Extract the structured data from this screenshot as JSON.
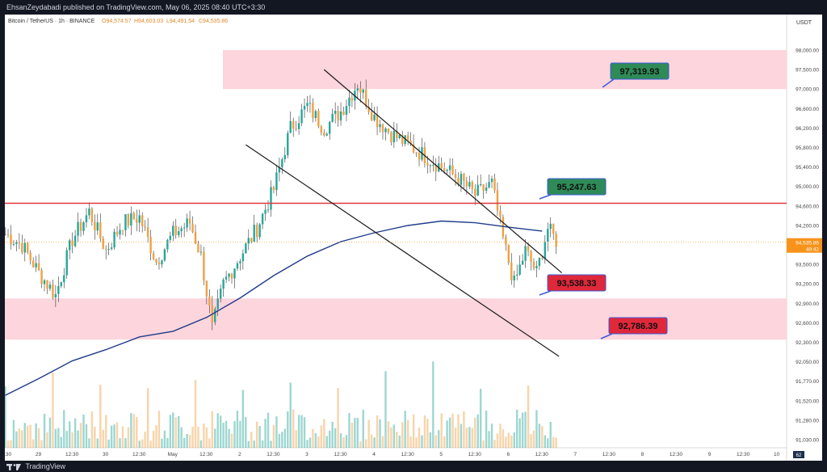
{
  "header": {
    "published_by": "EhsanZeydabadi published on TradingView.com, May 06, 2025 08:40 UTC+3:30"
  },
  "footer": {
    "brand": "TradingView"
  },
  "symbol_line": {
    "symbol": "Bitcoin / TetherUS · 1h · BINANCE",
    "open": "O94,574.57",
    "high": "H94,603.03",
    "low": "L94,491.54",
    "close": "C94,535.86"
  },
  "colors": {
    "up": "#26a69a",
    "down": "#f0a042",
    "zone": "#fdd5dc",
    "resistance_line": "#e0383e",
    "moving_average": "#1f3c8a",
    "channel": "#1a1a1a",
    "label_green": "#2e8b57",
    "label_red": "#e0283b",
    "last_price_badge": "#f7931a"
  },
  "chart_data": {
    "type": "candlestick",
    "currency": "USDT",
    "price_axis_ticks": [
      "98,000.00",
      "97,500.00",
      "97,000.00",
      "96,600.00",
      "96,200.00",
      "95,800.00",
      "95,400.00",
      "95,000.00",
      "94,600.00",
      "94,200.00",
      "93,800.00",
      "93,500.00",
      "93,200.00",
      "92,900.00",
      "92,600.00",
      "92,300.00",
      "92,050.00",
      "91,770.00",
      "91,520.00",
      "91,280.00",
      "91,030.00"
    ],
    "time_axis_ticks": [
      "12:30",
      "29",
      "12:30",
      "30",
      "12:30",
      "May",
      "12:30",
      "2",
      "12:30",
      "3",
      "12:30",
      "4",
      "12:30",
      "5",
      "12:30",
      "6",
      "12:30",
      "7",
      "12:30",
      "8",
      "12:30",
      "9",
      "12:30",
      "10"
    ],
    "last_price": "94,535.86",
    "countdown": "49:42",
    "bottom_right_badge": "62",
    "zones": [
      {
        "name": "upper supply zone",
        "from": 97300,
        "to": 98000
      },
      {
        "name": "lower demand zone",
        "from": 92800,
        "to": 93540
      }
    ],
    "resistance_line": 95250,
    "price_labels": [
      {
        "text": "97,319.93",
        "kind": "green"
      },
      {
        "text": "95,247.63",
        "kind": "green"
      },
      {
        "text": "93,538.33",
        "kind": "red"
      },
      {
        "text": "92,786.39",
        "kind": "red"
      }
    ],
    "channel_upper": {
      "from": {
        "time": "May 3 06:00",
        "price": 97650
      },
      "to": {
        "time": "May 6 19:00",
        "price": 94000
      }
    },
    "channel_lower": {
      "from": {
        "time": "May 2 02:00",
        "price": 96300
      },
      "to": {
        "time": "May 6 18:00",
        "price": 92500
      }
    },
    "moving_average": [
      {
        "time": "Apr 28 12:00",
        "price": 91800
      },
      {
        "time": "Apr 29 00:00",
        "price": 92100
      },
      {
        "time": "Apr 29 12:00",
        "price": 92420
      },
      {
        "time": "Apr 30 00:00",
        "price": 92620
      },
      {
        "time": "Apr 30 12:00",
        "price": 92850
      },
      {
        "time": "May 1 00:00",
        "price": 92950
      },
      {
        "time": "May 1 12:00",
        "price": 93200
      },
      {
        "time": "May 2 00:00",
        "price": 93550
      },
      {
        "time": "May 2 12:00",
        "price": 93950
      },
      {
        "time": "May 3 00:00",
        "price": 94300
      },
      {
        "time": "May 3 12:00",
        "price": 94560
      },
      {
        "time": "May 4 00:00",
        "price": 94720
      },
      {
        "time": "May 4 12:00",
        "price": 94850
      },
      {
        "time": "May 5 00:00",
        "price": 94930
      },
      {
        "time": "May 5 12:00",
        "price": 94900
      },
      {
        "time": "May 6 00:00",
        "price": 94820
      },
      {
        "time": "May 6 12:00",
        "price": 94750
      }
    ],
    "candle_closes": [
      {
        "time": "Apr 28 12:00",
        "price": 94700
      },
      {
        "time": "Apr 28 18:00",
        "price": 94500
      },
      {
        "time": "Apr 29 00:00",
        "price": 94000
      },
      {
        "time": "Apr 29 06:00",
        "price": 93600
      },
      {
        "time": "Apr 29 12:00",
        "price": 94600
      },
      {
        "time": "Apr 29 18:00",
        "price": 95100
      },
      {
        "time": "Apr 30 00:00",
        "price": 94400
      },
      {
        "time": "Apr 30 06:00",
        "price": 94900
      },
      {
        "time": "Apr 30 12:00",
        "price": 95000
      },
      {
        "time": "Apr 30 18:00",
        "price": 94200
      },
      {
        "time": "May 1 00:00",
        "price": 94700
      },
      {
        "time": "May 1 06:00",
        "price": 94900
      },
      {
        "time": "May 1 10:00",
        "price": 94300
      },
      {
        "time": "May 1 14:00",
        "price": 93000
      },
      {
        "time": "May 1 18:00",
        "price": 93800
      },
      {
        "time": "May 2 00:00",
        "price": 94300
      },
      {
        "time": "May 2 06:00",
        "price": 94800
      },
      {
        "time": "May 2 12:00",
        "price": 95500
      },
      {
        "time": "May 2 18:00",
        "price": 96600
      },
      {
        "time": "May 3 00:00",
        "price": 97000
      },
      {
        "time": "May 3 06:00",
        "price": 96600
      },
      {
        "time": "May 3 12:00",
        "price": 96900
      },
      {
        "time": "May 3 18:00",
        "price": 97400
      },
      {
        "time": "May 4 00:00",
        "price": 96800
      },
      {
        "time": "May 4 06:00",
        "price": 96500
      },
      {
        "time": "May 4 12:00",
        "price": 96300
      },
      {
        "time": "May 4 18:00",
        "price": 96100
      },
      {
        "time": "May 5 00:00",
        "price": 95900
      },
      {
        "time": "May 5 06:00",
        "price": 95700
      },
      {
        "time": "May 5 12:00",
        "price": 95400
      },
      {
        "time": "May 5 18:00",
        "price": 95600
      },
      {
        "time": "May 5 22:00",
        "price": 94600
      },
      {
        "time": "May 6 02:00",
        "price": 93800
      },
      {
        "time": "May 6 06:00",
        "price": 94400
      },
      {
        "time": "May 6 10:00",
        "price": 94000
      },
      {
        "time": "May 6 14:00",
        "price": 94800
      },
      {
        "time": "May 6 18:00",
        "price": 94500
      }
    ]
  }
}
